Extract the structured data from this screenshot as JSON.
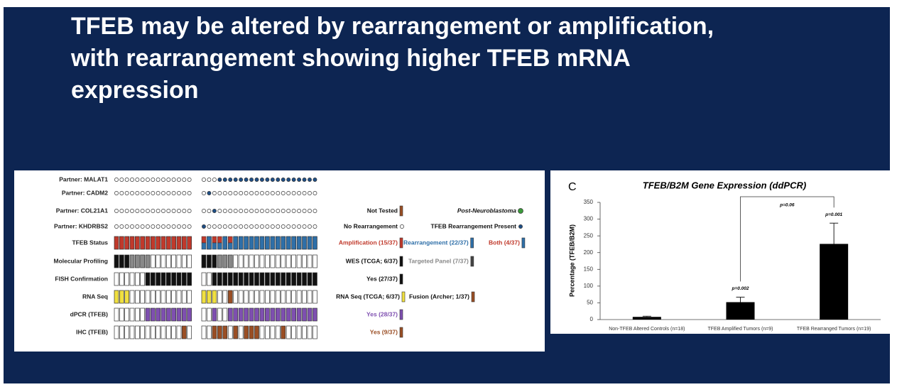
{
  "slide": {
    "title": [
      "TFEB may be altered by rearrangement or amplification,",
      "with rearrangement showing higher TFEB mRNA",
      "expression"
    ]
  },
  "figure": {
    "rows": [
      "Partner: MALAT1",
      "Partner: CADM2",
      "Partner: COL21A1",
      "Partner: KHDRBS2",
      "TFEB Status",
      "Molecular Profiling",
      "FISH Confirmation",
      "RNA Seq",
      "dPCR (TFEB)",
      "IHC (TFEB)"
    ],
    "legend": [
      "Not Tested",
      "Post-Neuroblastoma",
      "No Rearrangement",
      "TFEB Rearrangement Present",
      "Amplification (15/37)",
      "Rearrangement (22/37)",
      "Both (4/37)",
      "WES (TCGA; 6/37)",
      "Targeted Panel (7/37)",
      "Yes (27/37)",
      "RNA Seq (TCGA; 6/37)",
      "Fusion (Archer; 1/37)",
      "Yes (28/37)",
      "Yes (9/37)"
    ]
  },
  "chart_data": {
    "type": "bar",
    "panel": "C",
    "title": "TFEB/B2M Gene Expression (ddPCR)",
    "y_label": "Percentage (TFEB/B2M)",
    "categories": [
      "Non-TFEB Altered Controls (n=18)",
      "TFEB Amplified Tumors (n=9)",
      "TFEB Rearranged Tumors (n=19)"
    ],
    "values": [
      8,
      52,
      226
    ],
    "errors": [
      2,
      15,
      62
    ],
    "color": "#000000",
    "ylim": [
      0,
      350
    ],
    "yticks": [
      0,
      50,
      100,
      150,
      200,
      250,
      300,
      350
    ],
    "annotations": [
      "p=0.002",
      "p=0.001",
      "p=0.06"
    ]
  }
}
